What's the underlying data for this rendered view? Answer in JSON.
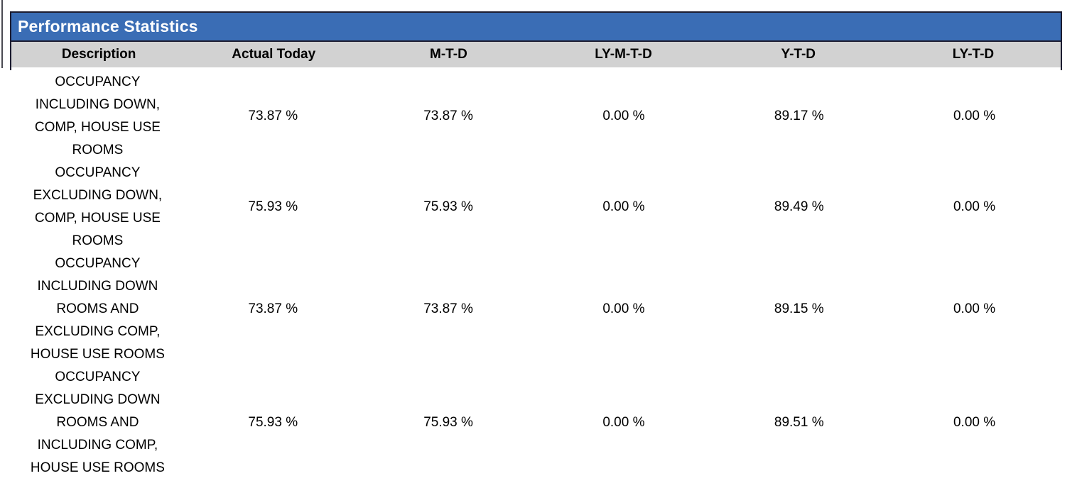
{
  "report": {
    "title": "Performance Statistics",
    "columns": [
      "Description",
      "Actual Today",
      "M-T-D",
      "LY-M-T-D",
      "Y-T-D",
      "LY-T-D"
    ],
    "rows": [
      {
        "description_lines": [
          "OCCUPANCY",
          "INCLUDING DOWN,",
          "COMP, HOUSE USE",
          "ROOMS"
        ],
        "values": [
          "73.87 %",
          "73.87 %",
          "0.00 %",
          "89.17 %",
          "0.00 %"
        ]
      },
      {
        "description_lines": [
          "OCCUPANCY",
          "EXCLUDING DOWN,",
          "COMP, HOUSE USE",
          "ROOMS"
        ],
        "values": [
          "75.93 %",
          "75.93 %",
          "0.00 %",
          "89.49 %",
          "0.00 %"
        ]
      },
      {
        "description_lines": [
          "OCCUPANCY",
          "INCLUDING DOWN",
          "ROOMS AND",
          "EXCLUDING COMP,",
          "HOUSE USE ROOMS"
        ],
        "values": [
          "73.87 %",
          "73.87 %",
          "0.00 %",
          "89.15 %",
          "0.00 %"
        ]
      },
      {
        "description_lines": [
          "OCCUPANCY",
          "EXCLUDING DOWN",
          "ROOMS AND",
          "INCLUDING COMP,",
          "HOUSE USE ROOMS"
        ],
        "values": [
          "75.93 %",
          "75.93 %",
          "0.00 %",
          "89.51 %",
          "0.00 %"
        ]
      }
    ],
    "colors": {
      "title_bg": "#3A6DB5",
      "title_text": "#FFFFFF",
      "header_bg": "#D2D2D2",
      "border": "#1C1C30",
      "body_text": "#000000"
    }
  }
}
